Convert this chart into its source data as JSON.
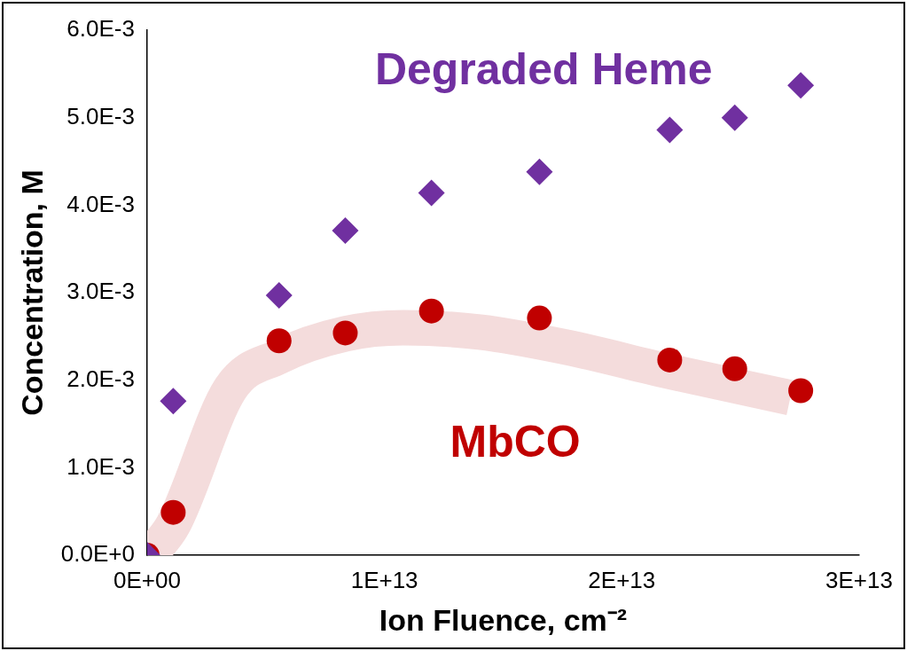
{
  "chart_data": {
    "type": "scatter",
    "xlabel": "Ion Fluence, cm⁻²",
    "ylabel": "Concentration, M",
    "xlim": [
      0,
      30000000000000.0
    ],
    "xticks": [
      {
        "value": 0,
        "label": "0E+00"
      },
      {
        "value": 10000000000000.0,
        "label": "1E+13"
      },
      {
        "value": 20000000000000.0,
        "label": "2E+13"
      },
      {
        "value": 30000000000000.0,
        "label": "3E+13"
      }
    ],
    "ylim": [
      0,
      0.006
    ],
    "yticks": [
      {
        "value": 0,
        "label": "0.0E+0"
      },
      {
        "value": 0.001,
        "label": "1.0E-3"
      },
      {
        "value": 0.002,
        "label": "2.0E-3"
      },
      {
        "value": 0.003,
        "label": "3.0E-3"
      },
      {
        "value": 0.004,
        "label": "4.0E-3"
      },
      {
        "value": 0.005,
        "label": "5.0E-3"
      },
      {
        "value": 0.006,
        "label": "6.0E-3"
      }
    ],
    "grid": false,
    "legend": false,
    "series": [
      {
        "type": "line",
        "color": "#f4dcdc",
        "marker": "none",
        "x": [
          100000000000.0,
          1100000000000.0,
          3500000000000.0,
          5560000000000.0,
          8350000000000.0,
          10800000000000.0,
          14000000000000.0,
          17600000000000.0,
          22000000000000.0,
          27100000000000.0
        ],
        "values": [
          0,
          0.00035,
          0.0019,
          0.00227,
          0.00253,
          0.0026,
          0.00255,
          0.00238,
          0.0021,
          0.0018
        ]
      },
      {
        "name": "Degraded Heme",
        "color": "#7030a0",
        "marker": "diamond",
        "x": [
          0,
          1100000000000.0,
          5560000000000.0,
          8350000000000.0,
          11980000000000.0,
          16530000000000.0,
          22020000000000.0,
          24760000000000.0,
          27540000000000.0
        ],
        "values": [
          0,
          0.00176,
          0.00297,
          0.00371,
          0.00414,
          0.00438,
          0.00486,
          0.005,
          0.00537
        ]
      },
      {
        "name": "MbCO",
        "color": "#c00000",
        "marker": "circle",
        "x": [
          0,
          1100000000000.0,
          5560000000000.0,
          8350000000000.0,
          11980000000000.0,
          16530000000000.0,
          22020000000000.0,
          24760000000000.0,
          27540000000000.0
        ],
        "values": [
          0,
          0.00049,
          0.00245,
          0.00254,
          0.00279,
          0.00271,
          0.00223,
          0.00213,
          0.00188
        ]
      }
    ]
  }
}
